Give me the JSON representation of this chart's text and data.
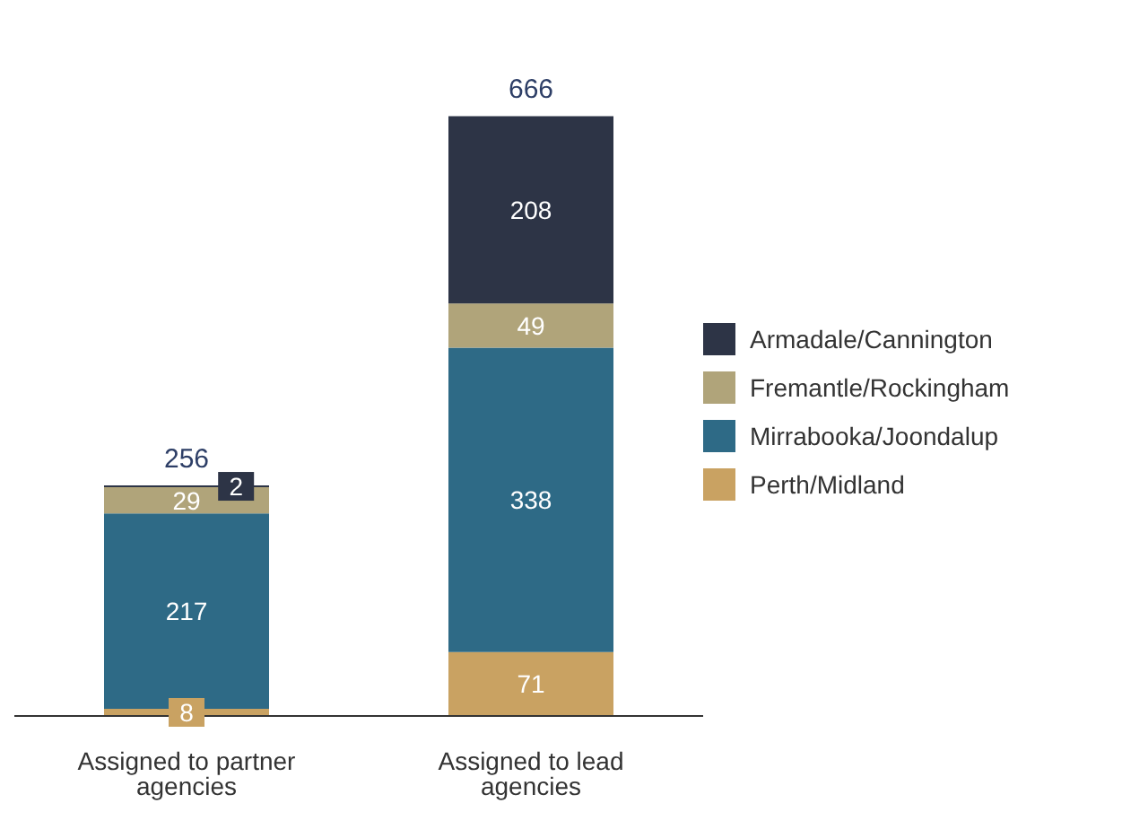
{
  "chart_data": {
    "type": "bar",
    "stacked": true,
    "categories": [
      "Assigned to partner agencies",
      "Assigned to lead agencies"
    ],
    "series": [
      {
        "name": "Perth/Midland",
        "color": "#c9a262",
        "values": [
          8,
          71
        ]
      },
      {
        "name": "Mirrabooka/Joondalup",
        "color": "#2e6a86",
        "values": [
          217,
          338
        ]
      },
      {
        "name": "Fremantle/Rockingham",
        "color": "#b0a47a",
        "values": [
          29,
          49
        ]
      },
      {
        "name": "Armadale/Cannington",
        "color": "#2d3446",
        "values": [
          2,
          208
        ]
      }
    ],
    "data_labels": true,
    "totals": [
      "256",
      "666"
    ],
    "legend": "right"
  }
}
